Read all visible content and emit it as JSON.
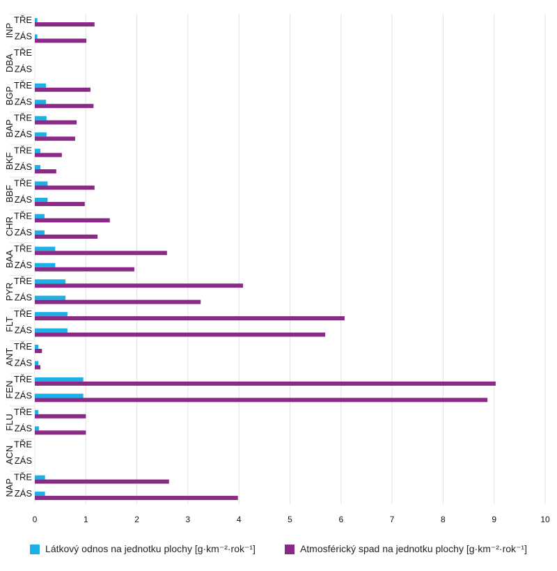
{
  "chart_data": {
    "type": "bar",
    "orientation": "horizontal",
    "groups": [
      "INP",
      "DBA",
      "BGP",
      "BAP",
      "BKF",
      "BBF",
      "CHR",
      "BAA",
      "PYR",
      "FLT",
      "ANT",
      "FEN",
      "FLU",
      "ACN",
      "NAP"
    ],
    "subcategories": [
      "TŘE",
      "ZÁS"
    ],
    "series": [
      {
        "name": "Látkový odnos na jednotku plochy [g·km⁻²·rok⁻¹]",
        "color": "#1bb0e6",
        "values": [
          [
            0.05,
            0.05
          ],
          [
            0,
            0
          ],
          [
            0.22,
            0.22
          ],
          [
            0.23,
            0.23
          ],
          [
            0.11,
            0.11
          ],
          [
            0.25,
            0.25
          ],
          [
            0.19,
            0.19
          ],
          [
            0.4,
            0.4
          ],
          [
            0.6,
            0.6
          ],
          [
            0.64,
            0.64
          ],
          [
            0.07,
            0.07
          ],
          [
            0.95,
            0.95
          ],
          [
            0.07,
            0.08
          ],
          [
            0,
            0
          ],
          [
            0.2,
            0.2
          ]
        ]
      },
      {
        "name": "Atmosférický spad na jednotku plochy [g·km⁻²·rok⁻¹]",
        "color": "#8b2a86",
        "values": [
          [
            1.17,
            1.01
          ],
          [
            0,
            0
          ],
          [
            1.09,
            1.15
          ],
          [
            0.82,
            0.79
          ],
          [
            0.53,
            0.42
          ],
          [
            1.17,
            0.98
          ],
          [
            1.47,
            1.23
          ],
          [
            2.59,
            1.95
          ],
          [
            4.08,
            3.25
          ],
          [
            6.07,
            5.69
          ],
          [
            0.14,
            0.11
          ],
          [
            9.03,
            8.87
          ],
          [
            1.0,
            1.0
          ],
          [
            0,
            0
          ],
          [
            2.63,
            3.98
          ]
        ]
      }
    ],
    "xlim": [
      0,
      10
    ],
    "xticks": [
      "0",
      "1",
      "2",
      "3",
      "4",
      "5",
      "6",
      "7",
      "8",
      "9",
      "10"
    ],
    "grid": "vertical",
    "legend_position": "bottom"
  }
}
